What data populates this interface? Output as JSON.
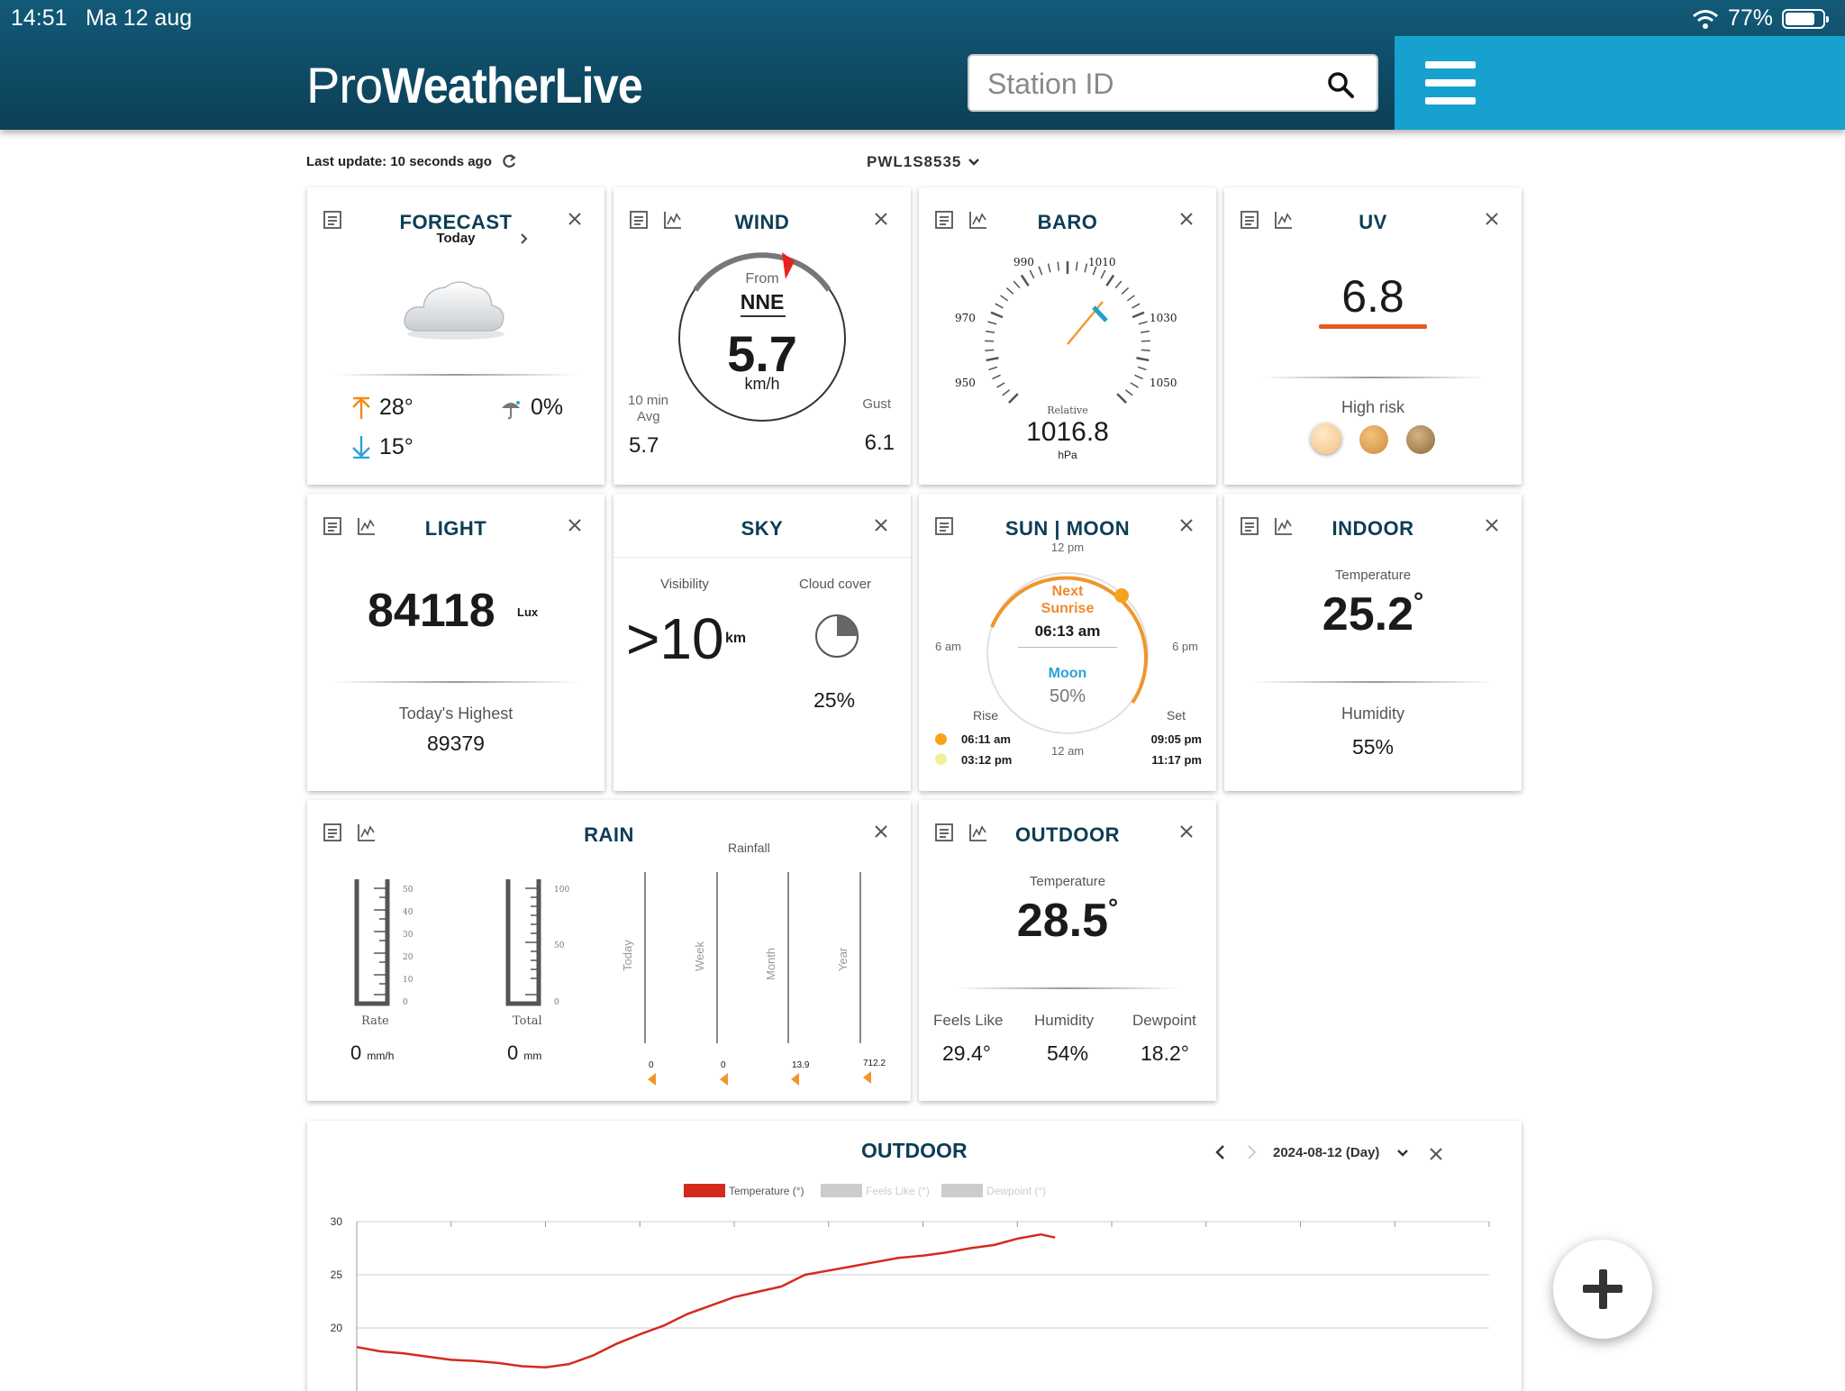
{
  "status": {
    "time": "14:51",
    "date": "Ma 12 aug",
    "battery": "77%"
  },
  "header": {
    "logo_part1": "Pro",
    "logo_part2": "WeatherLive",
    "search_placeholder": "Station ID"
  },
  "toolbar": {
    "last_update": "Last update: 10 seconds ago",
    "station": "PWL1S8535"
  },
  "forecast": {
    "title": "FORECAST",
    "day": "Today",
    "high": "28°",
    "low": "15°",
    "rain_chance": "0%"
  },
  "wind": {
    "title": "WIND",
    "from_label": "From",
    "direction": "NNE",
    "speed": "5.7",
    "unit": "km/h",
    "avg_label_1": "10 min",
    "avg_label_2": "Avg",
    "avg_value": "5.7",
    "gust_label": "Gust",
    "gust_value": "6.1"
  },
  "baro": {
    "title": "BARO",
    "ticks": [
      "950",
      "970",
      "990",
      "1010",
      "1030",
      "1050"
    ],
    "relative_label": "Relative",
    "value": "1016.8",
    "unit": "hPa"
  },
  "uv": {
    "title": "UV",
    "value": "6.8",
    "risk": "High risk"
  },
  "light": {
    "title": "LIGHT",
    "value": "84118",
    "unit": "Lux",
    "highest_label": "Today's Highest",
    "highest_value": "89379"
  },
  "sky": {
    "title": "SKY",
    "visibility_label": "Visibility",
    "visibility_value": ">10",
    "visibility_unit": "km",
    "cloud_label": "Cloud cover",
    "cloud_value": "25%",
    "cloud_fraction": 0.25
  },
  "sunmoon": {
    "title": "SUN | MOON",
    "t12pm": "12 pm",
    "t6am": "6 am",
    "t6pm": "6 pm",
    "t12am": "12 am",
    "next_label_1": "Next",
    "next_label_2": "Sunrise",
    "next_time": "06:13 am",
    "moon_label": "Moon",
    "moon_pct": "50%",
    "rise_label": "Rise",
    "set_label": "Set",
    "sun_rise": "06:11 am",
    "sun_set": "09:05 pm",
    "moon_rise": "03:12 pm",
    "moon_set": "11:17 pm"
  },
  "indoor": {
    "title": "INDOOR",
    "temp_label": "Temperature",
    "temp_value": "25.2",
    "hum_label": "Humidity",
    "hum_value": "55%"
  },
  "rain": {
    "title": "RAIN",
    "rainfall_label": "Rainfall",
    "rate_label": "Rate",
    "rate_value": "0",
    "rate_unit": "mm/h",
    "total_label": "Total",
    "total_value": "0",
    "total_unit": "mm",
    "rate_ticks": [
      "50",
      "40",
      "30",
      "20",
      "10",
      "0"
    ],
    "total_ticks": [
      "100",
      "50",
      "0"
    ],
    "bars": [
      {
        "label": "Today",
        "value": "0"
      },
      {
        "label": "Week",
        "value": "0"
      },
      {
        "label": "Month",
        "value": "13.9"
      },
      {
        "label": "Year",
        "value": "712.2"
      }
    ]
  },
  "outdoor": {
    "title": "OUTDOOR",
    "temp_label": "Temperature",
    "temp_value": "28.5",
    "feels_label": "Feels Like",
    "feels_value": "29.4°",
    "hum_label": "Humidity",
    "hum_value": "54%",
    "dew_label": "Dewpoint",
    "dew_value": "18.2°"
  },
  "chart_panel": {
    "title": "OUTDOOR",
    "date": "2024-08-12 (Day)"
  },
  "chart_data": {
    "type": "line",
    "title": "OUTDOOR",
    "series": [
      {
        "name": "Temperature (°)",
        "color": "#d42a1e",
        "x": [
          0,
          0.5,
          1,
          1.5,
          2,
          2.5,
          3,
          3.5,
          4,
          4.5,
          5,
          5.5,
          6,
          6.5,
          7,
          7.5,
          8,
          8.5,
          9,
          9.5,
          10,
          10.5,
          11,
          11.5,
          12,
          12.5,
          13,
          13.5,
          14,
          14.5,
          14.8
        ],
        "y": [
          18.2,
          17.8,
          17.6,
          17.3,
          17.0,
          16.9,
          16.7,
          16.4,
          16.3,
          16.6,
          17.4,
          18.5,
          19.4,
          20.2,
          21.3,
          22.1,
          22.9,
          23.4,
          23.9,
          25.0,
          25.4,
          25.8,
          26.2,
          26.6,
          26.8,
          27.1,
          27.5,
          27.8,
          28.4,
          28.8,
          28.5
        ]
      },
      {
        "name": "Feels Like (°)",
        "color": "#cccccc",
        "x": [],
        "y": []
      },
      {
        "name": "Dewpoint (°)",
        "color": "#cccccc",
        "x": [],
        "y": []
      }
    ],
    "y_ticks": [
      "30",
      "25",
      "20"
    ],
    "ylim": [
      14,
      30
    ],
    "xlim": [
      0,
      24
    ],
    "grid": true,
    "legend": "top"
  }
}
